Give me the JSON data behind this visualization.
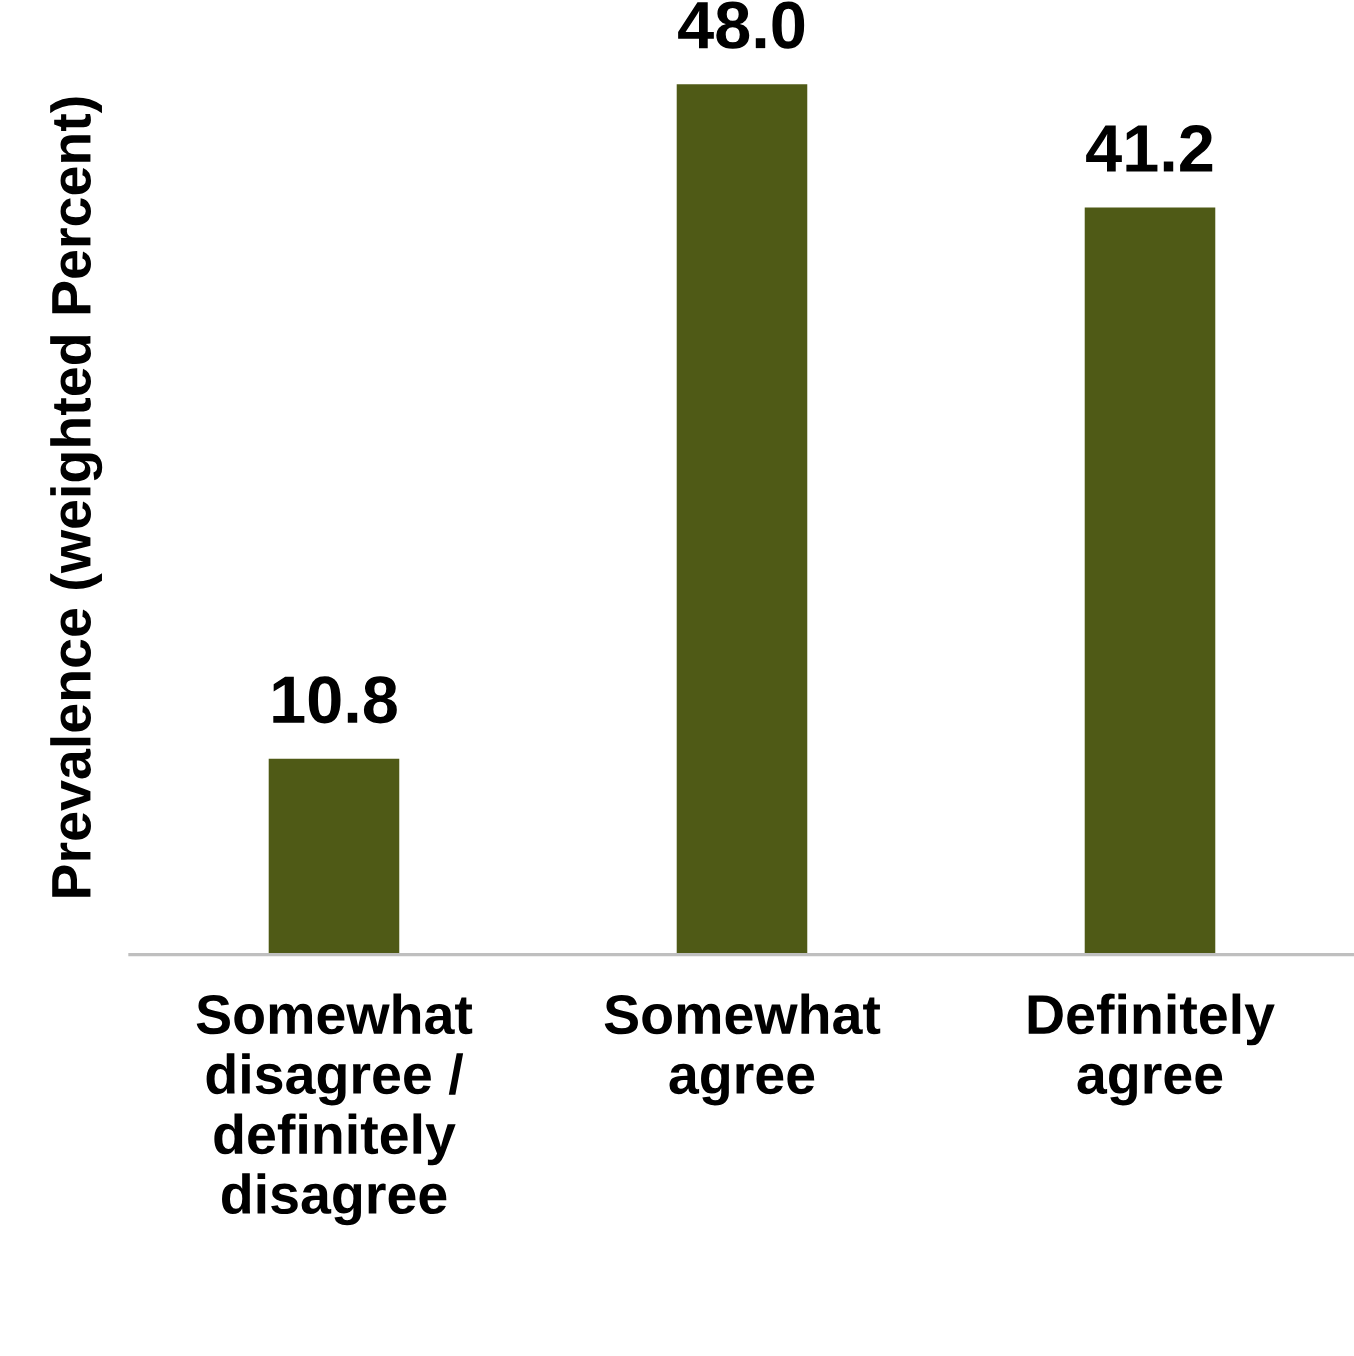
{
  "chart_data": {
    "type": "bar",
    "ylabel": "Prevalence (weighted Percent)",
    "categories": [
      "Somewhat\ndisagree /\ndefinitely\ndisagree",
      "Somewhat\nagree",
      "Definitely\nagree"
    ],
    "values": [
      10.8,
      48.0,
      41.2
    ],
    "value_labels": [
      "10.8",
      "48.0",
      "41.2"
    ],
    "color": "#4f5a16",
    "grid": false,
    "legend": false
  }
}
